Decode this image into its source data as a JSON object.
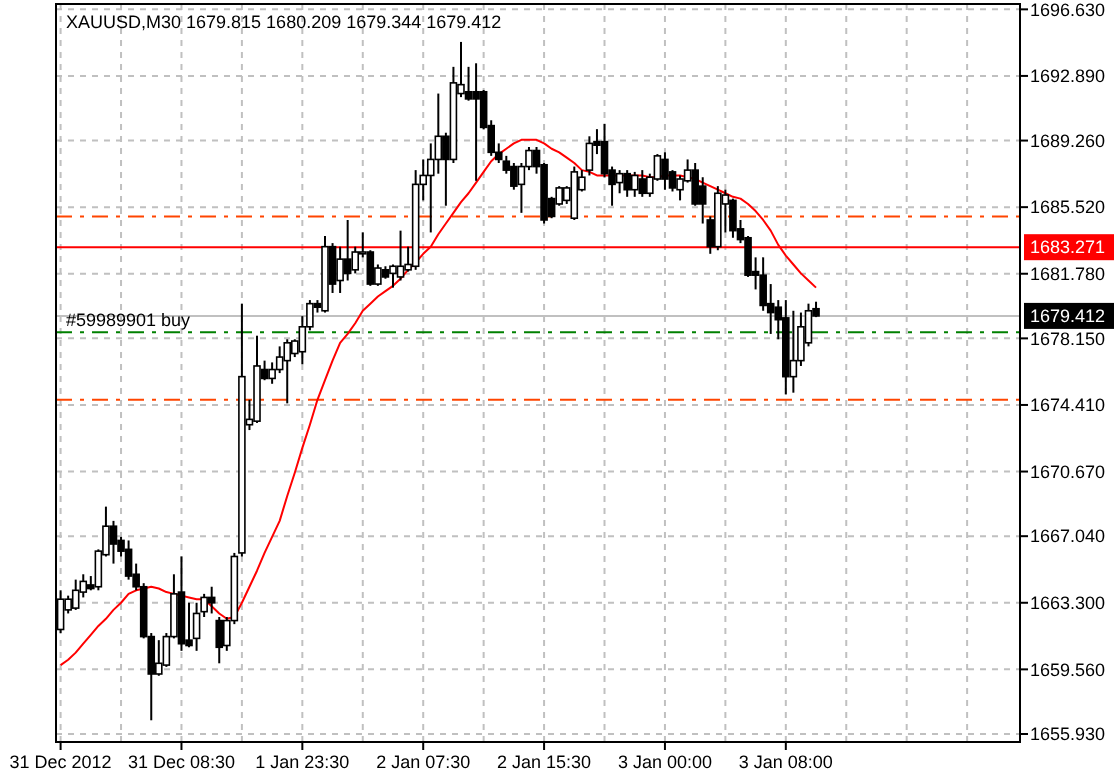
{
  "chart_data": {
    "type": "candlestick",
    "title": "XAUUSD,M30  1679.815 1680.209 1679.344 1679.412",
    "categories": [
      "31 Dec 2012",
      null,
      null,
      null,
      null,
      null,
      null,
      null,
      null,
      null,
      null,
      null,
      null,
      null,
      null,
      null,
      "31 Dec 08:30",
      null,
      null,
      null,
      null,
      null,
      null,
      null,
      null,
      null,
      null,
      null,
      null,
      null,
      null,
      null,
      "1 Jan 23:30",
      null,
      null,
      null,
      null,
      null,
      null,
      null,
      null,
      null,
      null,
      null,
      null,
      null,
      null,
      null,
      "2 Jan 07:30",
      null,
      null,
      null,
      null,
      null,
      null,
      null,
      null,
      null,
      null,
      null,
      null,
      null,
      null,
      null,
      "2 Jan 15:30",
      null,
      null,
      null,
      null,
      null,
      null,
      null,
      null,
      null,
      null,
      null,
      null,
      null,
      null,
      null,
      "3 Jan 00:00",
      null,
      null,
      null,
      null,
      null,
      null,
      null,
      null,
      null,
      null,
      null,
      null,
      null,
      null,
      null,
      "3 Jan 08:00",
      null,
      null,
      null,
      null
    ],
    "ohlc": [
      [
        1661.8,
        1664.0,
        1661.6,
        1663.5
      ],
      [
        1662.9,
        1663.7,
        1662.7,
        1663.5
      ],
      [
        1663.0,
        1664.6,
        1662.9,
        1664.0
      ],
      [
        1663.9,
        1664.9,
        1663.6,
        1664.5
      ],
      [
        1664.3,
        1664.8,
        1664.0,
        1664.1
      ],
      [
        1664.2,
        1666.3,
        1664.0,
        1666.2
      ],
      [
        1666.0,
        1668.7,
        1665.9,
        1667.6
      ],
      [
        1667.6,
        1667.9,
        1665.5,
        1666.6
      ],
      [
        1666.8,
        1667.0,
        1665.9,
        1666.2
      ],
      [
        1666.3,
        1666.8,
        1664.6,
        1664.8
      ],
      [
        1664.9,
        1665.5,
        1664.0,
        1664.2
      ],
      [
        1664.2,
        1664.4,
        1661.3,
        1661.4
      ],
      [
        1661.4,
        1661.6,
        1656.7,
        1659.3
      ],
      [
        1659.3,
        1661.2,
        1659.2,
        1659.9
      ],
      [
        1659.8,
        1661.6,
        1659.7,
        1661.4
      ],
      [
        1661.4,
        1664.9,
        1661.3,
        1663.8
      ],
      [
        1663.9,
        1665.9,
        1660.6,
        1661.0
      ],
      [
        1661.2,
        1663.3,
        1660.8,
        1660.9
      ],
      [
        1661.3,
        1663.3,
        1660.6,
        1662.7
      ],
      [
        1662.8,
        1663.8,
        1662.5,
        1663.6
      ],
      [
        1663.6,
        1664.2,
        1662.7,
        1663.3
      ],
      [
        1662.3,
        1662.5,
        1659.9,
        1660.8
      ],
      [
        1660.9,
        1662.5,
        1660.6,
        1662.3
      ],
      [
        1662.3,
        1666.1,
        1662.1,
        1665.9
      ],
      [
        1666.1,
        1680.1,
        1665.9,
        1676.0
      ],
      [
        1673.3,
        1674.7,
        1673.0,
        1673.6
      ],
      [
        1673.5,
        1678.3,
        1673.4,
        1676.6
      ],
      [
        1676.4,
        1676.9,
        1675.8,
        1675.9
      ],
      [
        1675.9,
        1676.8,
        1675.6,
        1676.4
      ],
      [
        1676.4,
        1677.7,
        1676.2,
        1677.1
      ],
      [
        1676.9,
        1678.1,
        1674.5,
        1677.9
      ],
      [
        1677.3,
        1678.1,
        1677.1,
        1678.0
      ],
      [
        1677.4,
        1679.4,
        1676.7,
        1678.8
      ],
      [
        1678.8,
        1680.3,
        1678.6,
        1680.1
      ],
      [
        1680.1,
        1680.3,
        1679.6,
        1679.9
      ],
      [
        1679.7,
        1683.9,
        1679.6,
        1683.3
      ],
      [
        1683.3,
        1683.5,
        1680.7,
        1681.2
      ],
      [
        1681.4,
        1683.3,
        1680.7,
        1682.6
      ],
      [
        1682.6,
        1684.8,
        1681.4,
        1681.8
      ],
      [
        1682.0,
        1683.3,
        1681.8,
        1683.0
      ],
      [
        1682.9,
        1684.1,
        1682.7,
        1683.0
      ],
      [
        1683.0,
        1683.1,
        1681.1,
        1681.2
      ],
      [
        1681.2,
        1682.3,
        1681.1,
        1682.1
      ],
      [
        1682.0,
        1682.2,
        1681.5,
        1681.6
      ],
      [
        1681.8,
        1682.3,
        1681.0,
        1682.2
      ],
      [
        1681.6,
        1684.2,
        1681.4,
        1682.2
      ],
      [
        1682.0,
        1683.3,
        1681.9,
        1682.3
      ],
      [
        1682.2,
        1687.6,
        1682.0,
        1686.8
      ],
      [
        1686.8,
        1688.2,
        1685.9,
        1687.3
      ],
      [
        1687.3,
        1689.1,
        1684.1,
        1688.2
      ],
      [
        1688.2,
        1691.9,
        1687.4,
        1689.5
      ],
      [
        1689.5,
        1689.7,
        1685.6,
        1688.2
      ],
      [
        1688.2,
        1693.4,
        1688.0,
        1692.5
      ],
      [
        1691.9,
        1694.8,
        1691.7,
        1692.4
      ],
      [
        1692.0,
        1693.4,
        1691.5,
        1691.6
      ],
      [
        1692.0,
        1693.6,
        1687.0,
        1691.6
      ],
      [
        1692.0,
        1692.1,
        1689.9,
        1690.0
      ],
      [
        1690.1,
        1690.4,
        1688.4,
        1688.6
      ],
      [
        1688.6,
        1689.1,
        1688.0,
        1688.2
      ],
      [
        1688.1,
        1688.4,
        1687.4,
        1687.6
      ],
      [
        1687.8,
        1688.0,
        1686.5,
        1686.7
      ],
      [
        1686.8,
        1688.0,
        1685.2,
        1687.8
      ],
      [
        1687.8,
        1688.9,
        1687.6,
        1688.7
      ],
      [
        1688.7,
        1688.9,
        1687.4,
        1687.8
      ],
      [
        1687.9,
        1688.0,
        1684.6,
        1684.8
      ],
      [
        1686.0,
        1686.1,
        1684.9,
        1685.0
      ],
      [
        1685.7,
        1686.7,
        1685.6,
        1686.6
      ],
      [
        1685.9,
        1686.7,
        1685.7,
        1686.6
      ],
      [
        1684.9,
        1687.8,
        1684.8,
        1687.5
      ],
      [
        1686.5,
        1687.6,
        1686.4,
        1687.2
      ],
      [
        1687.6,
        1689.5,
        1687.3,
        1689.1
      ],
      [
        1689.2,
        1689.9,
        1688.5,
        1689.0
      ],
      [
        1689.2,
        1690.2,
        1687.2,
        1687.4
      ],
      [
        1687.6,
        1687.8,
        1685.6,
        1686.8
      ],
      [
        1686.9,
        1687.6,
        1686.3,
        1687.4
      ],
      [
        1687.4,
        1687.6,
        1686.1,
        1686.5
      ],
      [
        1686.5,
        1687.5,
        1686.1,
        1687.3
      ],
      [
        1687.1,
        1687.6,
        1686.1,
        1686.3
      ],
      [
        1686.3,
        1687.4,
        1686.1,
        1687.2
      ],
      [
        1687.1,
        1688.5,
        1687.0,
        1688.4
      ],
      [
        1688.2,
        1688.6,
        1686.5,
        1687.1
      ],
      [
        1687.5,
        1687.6,
        1686.4,
        1686.6
      ],
      [
        1686.5,
        1687.3,
        1685.9,
        1687.1
      ],
      [
        1687.0,
        1688.2,
        1686.9,
        1687.6
      ],
      [
        1687.6,
        1688.0,
        1685.6,
        1685.7
      ],
      [
        1686.7,
        1687.2,
        1684.6,
        1685.7
      ],
      [
        1684.8,
        1685.0,
        1682.9,
        1683.3
      ],
      [
        1683.3,
        1686.7,
        1683.1,
        1686.3
      ],
      [
        1685.7,
        1686.5,
        1684.1,
        1686.2
      ],
      [
        1685.9,
        1686.0,
        1683.8,
        1684.2
      ],
      [
        1684.3,
        1684.8,
        1683.5,
        1683.7
      ],
      [
        1683.8,
        1683.9,
        1681.6,
        1681.7
      ],
      [
        1681.9,
        1682.7,
        1680.9,
        1681.7
      ],
      [
        1681.7,
        1682.7,
        1679.7,
        1680.0
      ],
      [
        1680.1,
        1681.2,
        1678.4,
        1679.6
      ],
      [
        1679.9,
        1680.3,
        1678.1,
        1679.2
      ],
      [
        1679.3,
        1680.3,
        1675.0,
        1676.0
      ],
      [
        1676.0,
        1679.7,
        1675.1,
        1676.9
      ],
      [
        1676.9,
        1679.6,
        1676.6,
        1678.8
      ],
      [
        1677.9,
        1680.1,
        1677.7,
        1679.7
      ],
      [
        1679.815,
        1680.209,
        1679.344,
        1679.412
      ]
    ],
    "series": [
      {
        "type": "line",
        "color": "#ff0000",
        "values": [
          1659.8,
          1660.1,
          1660.5,
          1661.0,
          1661.5,
          1662.0,
          1662.4,
          1662.9,
          1663.3,
          1663.8,
          1664.0,
          1664.1,
          1664.2,
          1664.1,
          1663.9,
          1663.8,
          1663.7,
          1663.6,
          1663.5,
          1663.5,
          1663.1,
          1662.7,
          1662.4,
          1662.5,
          1663.3,
          1664.2,
          1665.1,
          1666.1,
          1667.0,
          1667.9,
          1669.3,
          1670.6,
          1672.0,
          1673.3,
          1674.7,
          1675.8,
          1676.9,
          1677.9,
          1678.4,
          1679.0,
          1679.7,
          1680.1,
          1680.5,
          1680.8,
          1681.1,
          1681.5,
          1682.0,
          1682.4,
          1682.9,
          1683.3,
          1684.0,
          1684.6,
          1685.2,
          1685.8,
          1686.3,
          1686.9,
          1687.5,
          1688.1,
          1688.5,
          1688.8,
          1689.1,
          1689.3,
          1689.3,
          1689.3,
          1689.1,
          1688.8,
          1688.6,
          1688.3,
          1688.0,
          1687.6,
          1687.5,
          1687.3,
          1687.3,
          1687.3,
          1687.3,
          1687.3,
          1687.3,
          1687.3,
          1687.2,
          1687.2,
          1687.3,
          1687.3,
          1687.3,
          1687.2,
          1687.1,
          1686.9,
          1686.7,
          1686.5,
          1686.3,
          1686.1,
          1686.0,
          1685.7,
          1685.3,
          1684.8,
          1684.2,
          1683.4,
          1682.8,
          1682.3,
          1681.8,
          1681.4,
          1681.0
        ]
      }
    ],
    "ylim": [
      1655.48,
      1696.93
    ],
    "yticks": [
      {
        "value": 1655.93,
        "label": "1655.930"
      },
      {
        "value": 1659.56,
        "label": "1659.560"
      },
      {
        "value": 1663.3,
        "label": "1663.300"
      },
      {
        "value": 1667.04,
        "label": "1667.040"
      },
      {
        "value": 1670.67,
        "label": "1670.670"
      },
      {
        "value": 1674.41,
        "label": "1674.410"
      },
      {
        "value": 1678.15,
        "label": "1678.150"
      },
      {
        "value": 1681.78,
        "label": "1681.780"
      },
      {
        "value": 1685.52,
        "label": "1685.520"
      },
      {
        "value": 1689.26,
        "label": "1689.260"
      },
      {
        "value": 1692.89,
        "label": "1692.890"
      },
      {
        "value": 1696.63,
        "label": "1696.630"
      }
    ],
    "ref_lines": [
      {
        "axis": "y",
        "value": 1685.0,
        "color": "#ff4500",
        "line_style": "dashed"
      },
      {
        "axis": "y",
        "value": 1683.271,
        "label": "1683.271",
        "color": "#ff0000",
        "line_style": "solid"
      },
      {
        "axis": "y",
        "value": 1679.412,
        "label": "1679.412",
        "color": "#c0c0c0",
        "line_style": "solid"
      },
      {
        "axis": "y",
        "value": 1678.5,
        "label": "#59989901 buy",
        "color": "#008000",
        "line_style": "dashed"
      },
      {
        "axis": "y",
        "value": 1674.7,
        "color": "#ff4500",
        "line_style": "dashed"
      }
    ],
    "grid": true
  }
}
